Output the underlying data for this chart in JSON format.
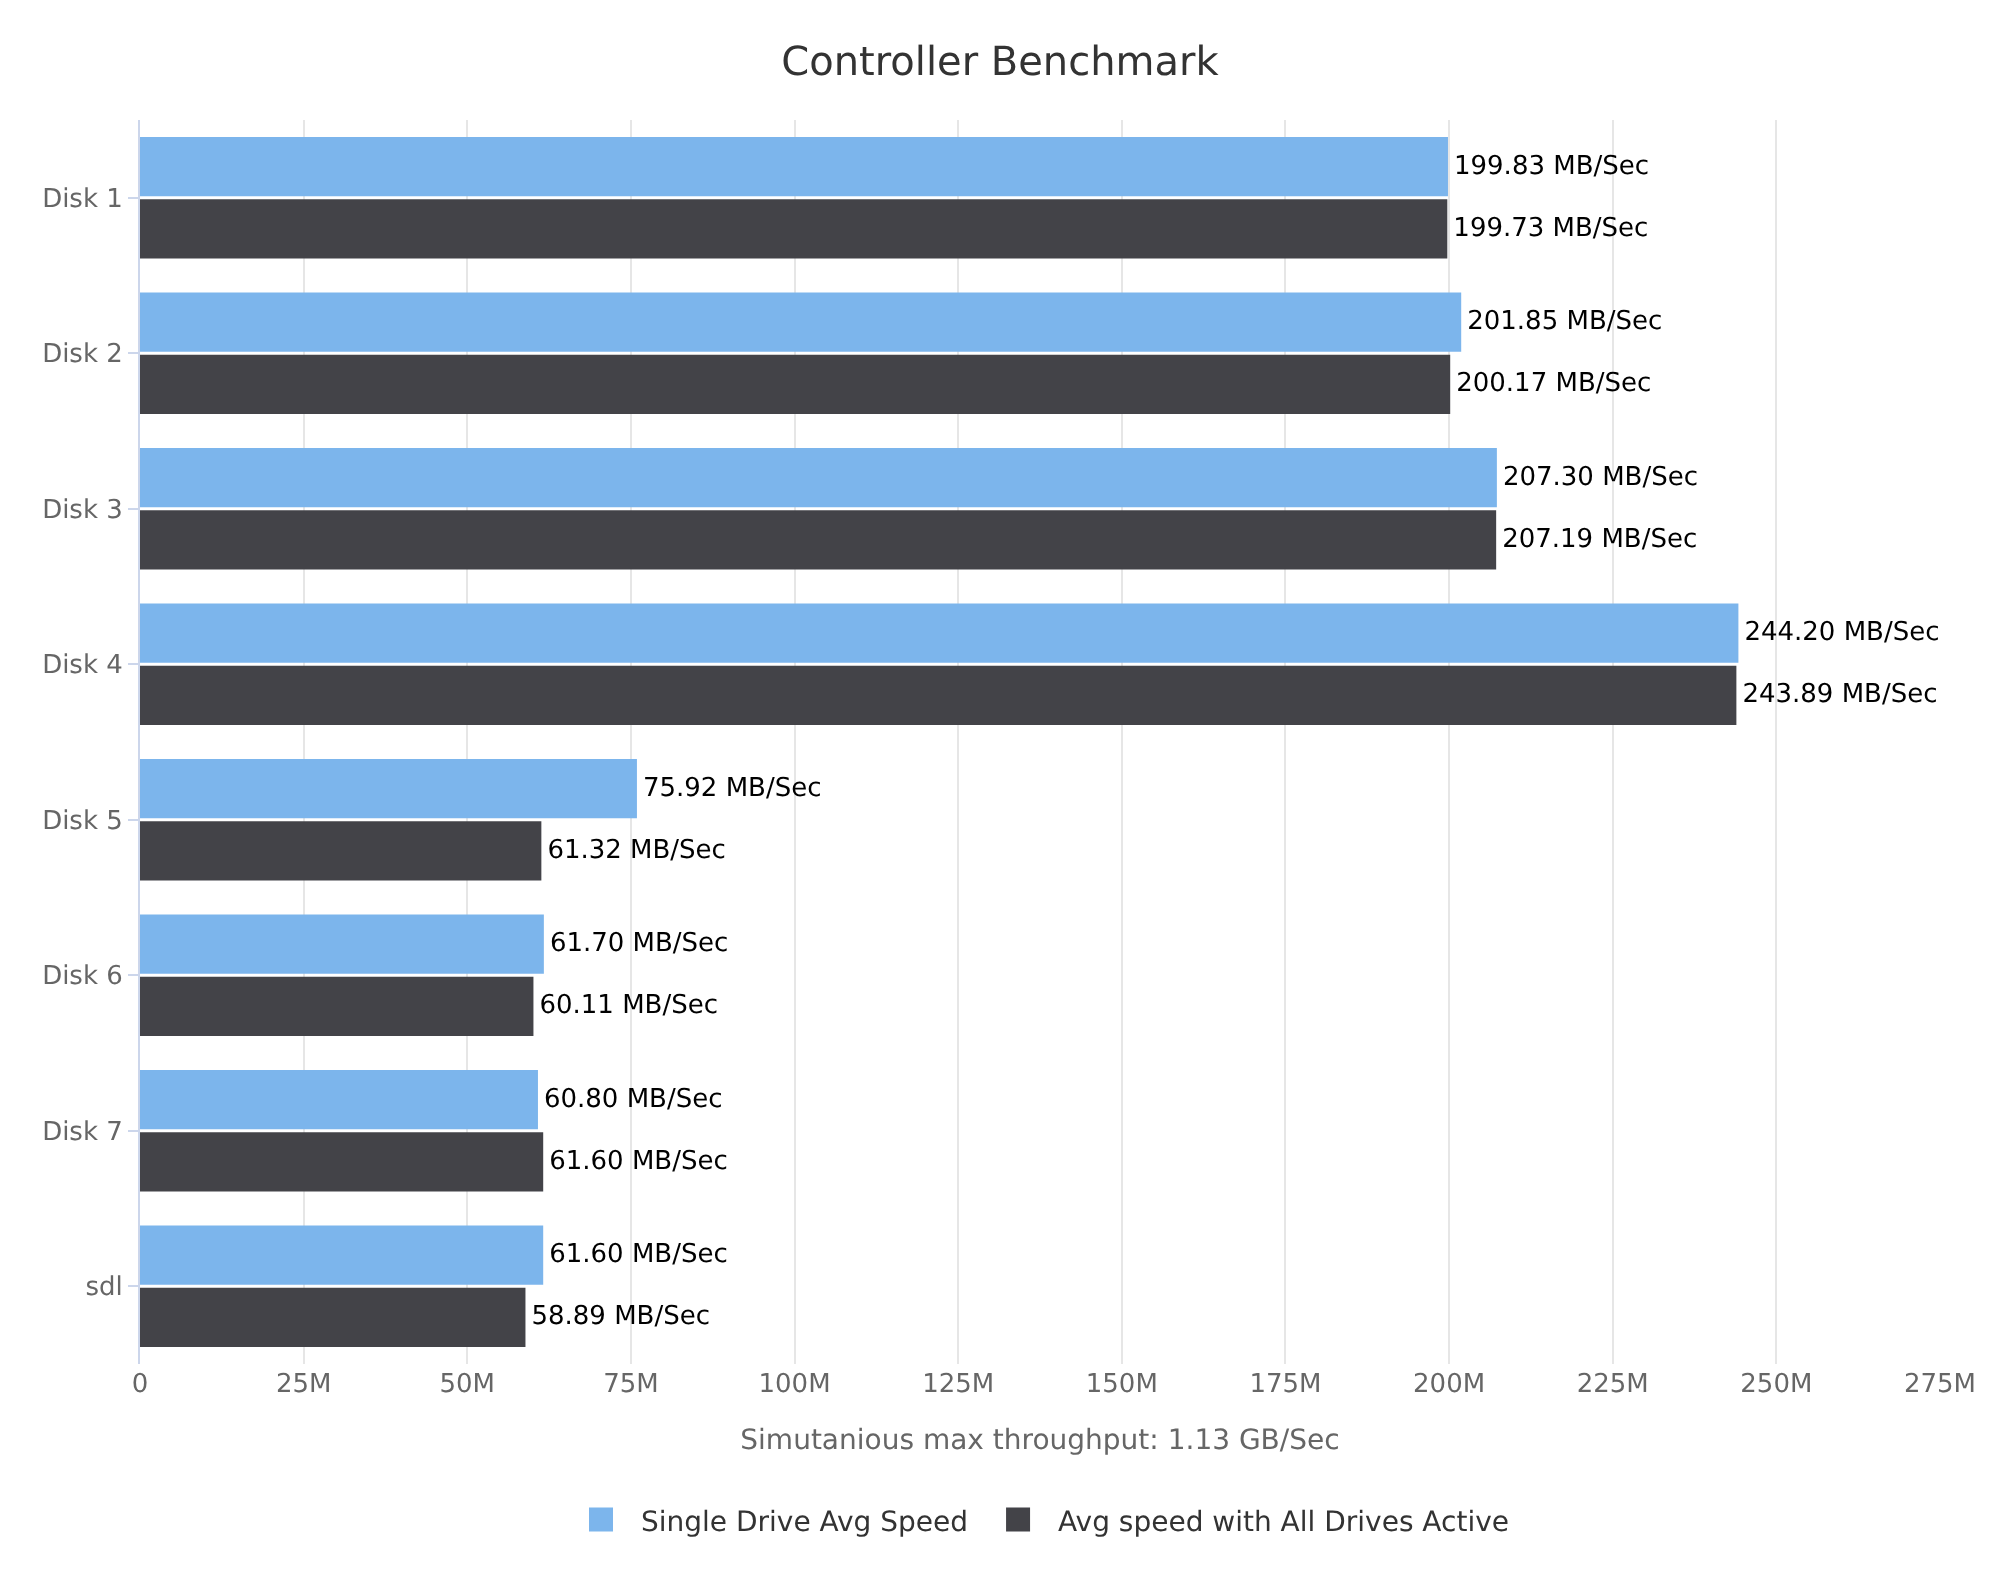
{
  "chart_data": {
    "type": "bar",
    "orientation": "horizontal",
    "title": "Controller Benchmark",
    "xlabel": "Simutanious max throughput: 1.13 GB/Sec",
    "categories": [
      "Disk 1",
      "Disk 2",
      "Disk 3",
      "Disk 4",
      "Disk 5",
      "Disk 6",
      "Disk 7",
      "sdl"
    ],
    "series": [
      {
        "name": "Single Drive Avg Speed",
        "color": "#7cb5ec",
        "values": [
          199.83,
          201.85,
          207.3,
          244.2,
          75.92,
          61.7,
          60.8,
          61.6
        ],
        "value_labels": [
          "199.83 MB/Sec",
          "201.85 MB/Sec",
          "207.30 MB/Sec",
          "244.20 MB/Sec",
          "75.92 MB/Sec",
          "61.70 MB/Sec",
          "60.80 MB/Sec",
          "61.60 MB/Sec"
        ]
      },
      {
        "name": "Avg speed with All Drives Active",
        "color": "#434348",
        "values": [
          199.73,
          200.17,
          207.19,
          243.89,
          61.32,
          60.11,
          61.6,
          58.89
        ],
        "value_labels": [
          "199.73 MB/Sec",
          "200.17 MB/Sec",
          "207.19 MB/Sec",
          "243.89 MB/Sec",
          "61.32 MB/Sec",
          "60.11 MB/Sec",
          "61.60 MB/Sec",
          "58.89 MB/Sec"
        ]
      }
    ],
    "xlim": [
      0,
      275
    ],
    "xticks": [
      0,
      {
        "value": 25,
        "label": "25M"
      },
      {
        "value": 50,
        "label": "50M"
      },
      {
        "value": 75,
        "label": "75M"
      },
      {
        "value": 100,
        "label": "100M"
      },
      {
        "value": 125,
        "label": "125M"
      },
      {
        "value": 150,
        "label": "150M"
      },
      {
        "value": 175,
        "label": "175M"
      },
      {
        "value": 200,
        "label": "200M"
      },
      {
        "value": 225,
        "label": "225M"
      },
      {
        "value": 250,
        "label": "250M"
      },
      {
        "value": 275,
        "label": "275M"
      }
    ],
    "grid": "x",
    "legend": "bottom"
  }
}
